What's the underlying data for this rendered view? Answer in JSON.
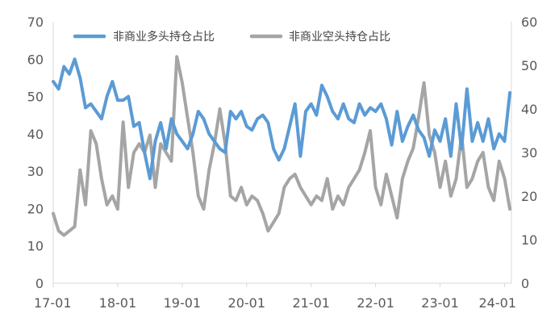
{
  "chart_data": {
    "type": "line",
    "title": "",
    "xlabel": "",
    "ylabel": "",
    "x_ticks": [
      "17-01",
      "18-01",
      "19-01",
      "20-01",
      "21-01",
      "22-01",
      "23-01",
      "24-01"
    ],
    "x_range": [
      "2017-01",
      "2024-01"
    ],
    "y_left": {
      "ticks": [
        0,
        10,
        20,
        30,
        40,
        50,
        60,
        70
      ],
      "ylim": [
        0,
        70
      ]
    },
    "y_right": {
      "ticks": [
        0,
        10,
        20,
        30,
        40,
        50,
        60
      ],
      "ylim": [
        0,
        60
      ]
    },
    "grid": false,
    "legend": "top",
    "series": [
      {
        "name": "非商业多头持仓占比",
        "axis": "left",
        "color": "#5b9bd5",
        "points": [
          [
            "2017-01",
            54
          ],
          [
            "2017-02",
            52
          ],
          [
            "2017-03",
            58
          ],
          [
            "2017-04",
            56
          ],
          [
            "2017-05",
            60
          ],
          [
            "2017-06",
            55
          ],
          [
            "2017-07",
            47
          ],
          [
            "2017-08",
            48
          ],
          [
            "2017-09",
            46
          ],
          [
            "2017-10",
            44
          ],
          [
            "2017-11",
            50
          ],
          [
            "2017-12",
            54
          ],
          [
            "2018-01",
            49
          ],
          [
            "2018-02",
            49
          ],
          [
            "2018-03",
            50
          ],
          [
            "2018-04",
            42
          ],
          [
            "2018-05",
            43
          ],
          [
            "2018-06",
            35
          ],
          [
            "2018-07",
            28
          ],
          [
            "2018-08",
            38
          ],
          [
            "2018-09",
            43
          ],
          [
            "2018-10",
            36
          ],
          [
            "2018-11",
            44
          ],
          [
            "2018-12",
            40
          ],
          [
            "2019-01",
            38
          ],
          [
            "2019-02",
            36
          ],
          [
            "2019-03",
            40
          ],
          [
            "2019-04",
            46
          ],
          [
            "2019-05",
            44
          ],
          [
            "2019-06",
            40
          ],
          [
            "2019-07",
            38
          ],
          [
            "2019-08",
            36
          ],
          [
            "2019-09",
            35
          ],
          [
            "2019-10",
            46
          ],
          [
            "2019-11",
            44
          ],
          [
            "2019-12",
            46
          ],
          [
            "2020-01",
            42
          ],
          [
            "2020-02",
            41
          ],
          [
            "2020-03",
            44
          ],
          [
            "2020-04",
            45
          ],
          [
            "2020-05",
            43
          ],
          [
            "2020-06",
            36
          ],
          [
            "2020-07",
            33
          ],
          [
            "2020-08",
            36
          ],
          [
            "2020-09",
            42
          ],
          [
            "2020-10",
            48
          ],
          [
            "2020-11",
            34
          ],
          [
            "2020-12",
            46
          ],
          [
            "2021-01",
            48
          ],
          [
            "2021-02",
            45
          ],
          [
            "2021-03",
            53
          ],
          [
            "2021-04",
            50
          ],
          [
            "2021-05",
            46
          ],
          [
            "2021-06",
            44
          ],
          [
            "2021-07",
            48
          ],
          [
            "2021-08",
            44
          ],
          [
            "2021-09",
            43
          ],
          [
            "2021-10",
            48
          ],
          [
            "2021-11",
            45
          ],
          [
            "2021-12",
            47
          ],
          [
            "2022-01",
            46
          ],
          [
            "2022-02",
            48
          ],
          [
            "2022-03",
            44
          ],
          [
            "2022-04",
            37
          ],
          [
            "2022-05",
            46
          ],
          [
            "2022-06",
            38
          ],
          [
            "2022-07",
            42
          ],
          [
            "2022-08",
            45
          ],
          [
            "2022-09",
            41
          ],
          [
            "2022-10",
            39
          ],
          [
            "2022-11",
            34
          ],
          [
            "2022-12",
            41
          ],
          [
            "2023-01",
            38
          ],
          [
            "2023-02",
            44
          ],
          [
            "2023-03",
            34
          ],
          [
            "2023-04",
            48
          ],
          [
            "2023-05",
            36
          ],
          [
            "2023-06",
            52
          ],
          [
            "2023-07",
            38
          ],
          [
            "2023-08",
            43
          ],
          [
            "2023-09",
            38
          ],
          [
            "2023-10",
            44
          ],
          [
            "2023-11",
            36
          ],
          [
            "2023-12",
            40
          ],
          [
            "2024-01",
            38
          ],
          [
            "2024-02",
            51
          ]
        ]
      },
      {
        "name": "非商业空头持仓占比",
        "axis": "right",
        "color": "#a5a5a5",
        "points": [
          [
            "2017-01",
            16
          ],
          [
            "2017-02",
            12
          ],
          [
            "2017-03",
            11
          ],
          [
            "2017-04",
            12
          ],
          [
            "2017-05",
            13
          ],
          [
            "2017-06",
            26
          ],
          [
            "2017-07",
            18
          ],
          [
            "2017-08",
            35
          ],
          [
            "2017-09",
            32
          ],
          [
            "2017-10",
            24
          ],
          [
            "2017-11",
            18
          ],
          [
            "2017-12",
            20
          ],
          [
            "2018-01",
            17
          ],
          [
            "2018-02",
            37
          ],
          [
            "2018-03",
            22
          ],
          [
            "2018-04",
            30
          ],
          [
            "2018-05",
            32
          ],
          [
            "2018-06",
            30
          ],
          [
            "2018-07",
            34
          ],
          [
            "2018-08",
            22
          ],
          [
            "2018-09",
            32
          ],
          [
            "2018-10",
            30
          ],
          [
            "2018-11",
            28
          ],
          [
            "2018-12",
            52
          ],
          [
            "2019-01",
            46
          ],
          [
            "2019-02",
            38
          ],
          [
            "2019-03",
            30
          ],
          [
            "2019-04",
            20
          ],
          [
            "2019-05",
            17
          ],
          [
            "2019-06",
            26
          ],
          [
            "2019-07",
            32
          ],
          [
            "2019-08",
            40
          ],
          [
            "2019-09",
            32
          ],
          [
            "2019-10",
            20
          ],
          [
            "2019-11",
            19
          ],
          [
            "2019-12",
            22
          ],
          [
            "2020-01",
            18
          ],
          [
            "2020-02",
            20
          ],
          [
            "2020-03",
            19
          ],
          [
            "2020-04",
            16
          ],
          [
            "2020-05",
            12
          ],
          [
            "2020-06",
            14
          ],
          [
            "2020-07",
            16
          ],
          [
            "2020-08",
            22
          ],
          [
            "2020-09",
            24
          ],
          [
            "2020-10",
            25
          ],
          [
            "2020-11",
            22
          ],
          [
            "2020-12",
            20
          ],
          [
            "2021-01",
            18
          ],
          [
            "2021-02",
            20
          ],
          [
            "2021-03",
            19
          ],
          [
            "2021-04",
            24
          ],
          [
            "2021-05",
            17
          ],
          [
            "2021-06",
            20
          ],
          [
            "2021-07",
            18
          ],
          [
            "2021-08",
            22
          ],
          [
            "2021-09",
            24
          ],
          [
            "2021-10",
            26
          ],
          [
            "2021-11",
            30
          ],
          [
            "2021-12",
            35
          ],
          [
            "2022-01",
            22
          ],
          [
            "2022-02",
            18
          ],
          [
            "2022-03",
            25
          ],
          [
            "2022-04",
            20
          ],
          [
            "2022-05",
            15
          ],
          [
            "2022-06",
            24
          ],
          [
            "2022-07",
            28
          ],
          [
            "2022-08",
            31
          ],
          [
            "2022-09",
            38
          ],
          [
            "2022-10",
            46
          ],
          [
            "2022-11",
            34
          ],
          [
            "2022-12",
            30
          ],
          [
            "2023-01",
            22
          ],
          [
            "2023-02",
            28
          ],
          [
            "2023-03",
            20
          ],
          [
            "2023-04",
            24
          ],
          [
            "2023-05",
            34
          ],
          [
            "2023-06",
            22
          ],
          [
            "2023-07",
            24
          ],
          [
            "2023-08",
            28
          ],
          [
            "2023-09",
            30
          ],
          [
            "2023-10",
            22
          ],
          [
            "2023-11",
            19
          ],
          [
            "2023-12",
            28
          ],
          [
            "2024-01",
            24
          ],
          [
            "2024-02",
            17
          ]
        ]
      }
    ]
  }
}
